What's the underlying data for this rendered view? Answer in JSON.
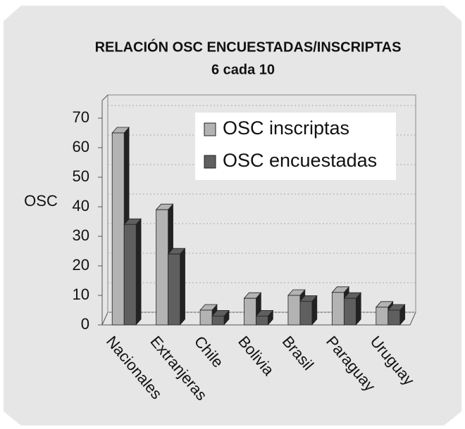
{
  "chart_data": {
    "type": "bar3d",
    "title": "RELACIÓN  OSC  ENCUESTADAS/INSCRIPTAS",
    "subtitle": "6 cada 10",
    "y_label": "OSC",
    "categories": [
      "Nacionales",
      "Extranjeras",
      "Chile",
      "Bolivia",
      "Brasil",
      "Paraguay",
      "Uruguay"
    ],
    "series": [
      {
        "name": "OSC inscriptas",
        "color": "#b3b3b3",
        "values": [
          65,
          39,
          5,
          9,
          10,
          11,
          6
        ]
      },
      {
        "name": "OSC encuestadas",
        "color": "#5f5f5f",
        "values": [
          34,
          24,
          3,
          3,
          8,
          9,
          5
        ]
      }
    ],
    "ylim": [
      0,
      70
    ],
    "yticks": [
      0,
      10,
      20,
      30,
      40,
      50,
      60,
      70
    ],
    "grid": true,
    "legend": "upper right"
  }
}
